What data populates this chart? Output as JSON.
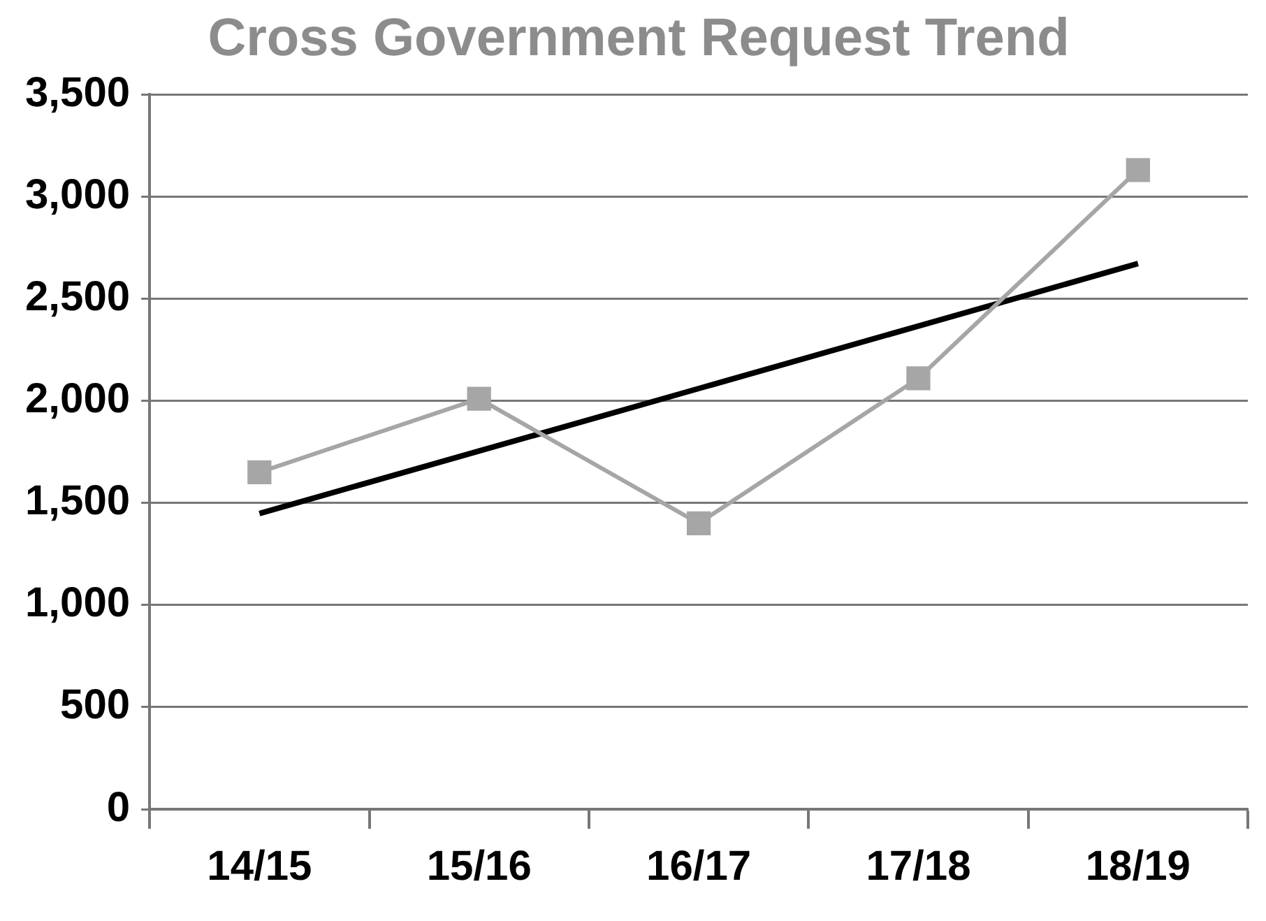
{
  "chart_data": {
    "type": "line",
    "title": "Cross Government Request Trend",
    "categories": [
      "14/15",
      "15/16",
      "16/17",
      "17/18",
      "18/19"
    ],
    "series": [
      {
        "color": "#a6a6a6",
        "values": [
          1650,
          2010,
          1400,
          2110,
          3130
        ],
        "marker": "square"
      },
      {
        "color": "#000000",
        "values": [
          1448,
          1754,
          2060,
          2366,
          2672
        ],
        "marker": "none"
      }
    ],
    "ylim": [
      0,
      3500
    ],
    "yticks": [
      0,
      500,
      {
        "value": 1000,
        "label": "1,000"
      },
      {
        "value": 1500,
        "label": "1,500"
      },
      {
        "value": 2000,
        "label": "2,000"
      },
      {
        "value": 2500,
        "label": "2,500"
      },
      {
        "value": 3000,
        "label": "3,000"
      },
      {
        "value": 3500,
        "label": "3,500"
      }
    ],
    "grid": "y",
    "legend": false
  }
}
